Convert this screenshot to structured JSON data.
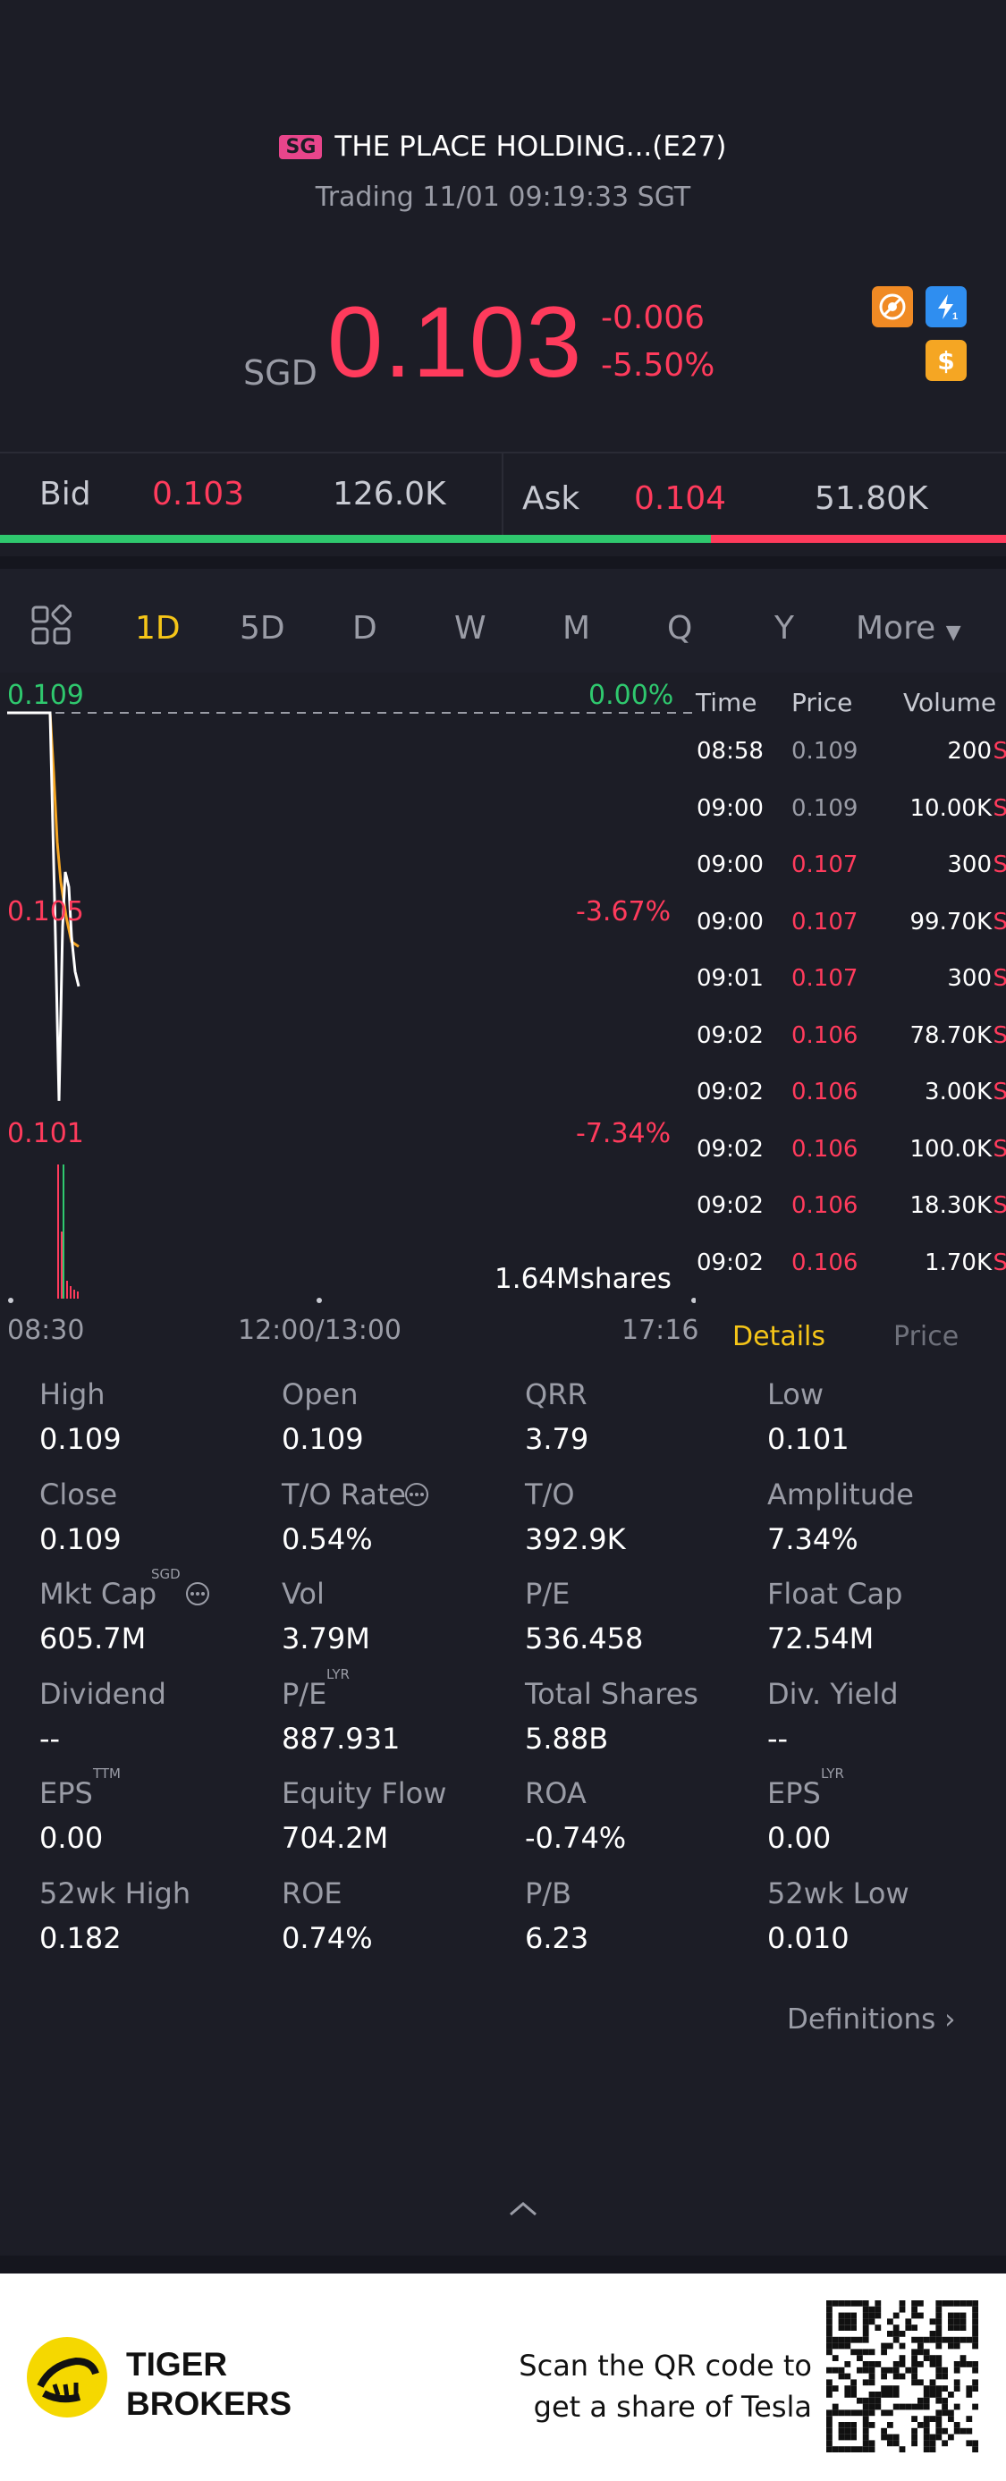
{
  "header": {
    "market_badge": "SG",
    "title": "THE PLACE HOLDING...(E27)",
    "status": "Trading 11/01 09:19:33 SGT",
    "currency": "SGD",
    "price": "0.103",
    "change": "-0.006",
    "change_pct": "-5.50%",
    "icons": [
      "no-trade-icon",
      "lightning-level1-icon",
      "dollar-icon"
    ]
  },
  "bidask": {
    "bid_label": "Bid",
    "bid_price": "0.103",
    "bid_size": "126.0K",
    "ask_label": "Ask",
    "ask_price": "0.104",
    "ask_size": "51.80K",
    "bid_share": 0.707
  },
  "tabs": {
    "items": [
      "1D",
      "5D",
      "D",
      "W",
      "M",
      "Q",
      "Y"
    ],
    "active": "1D",
    "more_label": "More"
  },
  "chart": {
    "price_high": "0.109",
    "pct_high": "0.00%",
    "price_mid": "0.105",
    "pct_mid": "-3.67%",
    "price_low": "0.101",
    "pct_low": "-7.34%",
    "volume_label": "1.64Mshares",
    "time_start": "08:30",
    "time_mid": "12:00/13:00",
    "time_end": "17:16"
  },
  "chart_data": {
    "type": "line",
    "x": [
      "08:30",
      "08:58",
      "09:00",
      "09:01",
      "09:02"
    ],
    "series": [
      {
        "values": [
          0.109,
          0.109,
          0.107,
          0.107,
          0.106
        ]
      }
    ],
    "ylim": [
      0.101,
      0.109
    ]
  },
  "ticks": {
    "headers": [
      "Time",
      "Price",
      "Volume"
    ],
    "rows": [
      {
        "time": "08:58",
        "price": "0.109",
        "volume": "200",
        "side": "S",
        "tone": "flat"
      },
      {
        "time": "09:00",
        "price": "0.109",
        "volume": "10.00K",
        "side": "S",
        "tone": "flat"
      },
      {
        "time": "09:00",
        "price": "0.107",
        "volume": "300",
        "side": "S",
        "tone": "down"
      },
      {
        "time": "09:00",
        "price": "0.107",
        "volume": "99.70K",
        "side": "S",
        "tone": "down"
      },
      {
        "time": "09:01",
        "price": "0.107",
        "volume": "300",
        "side": "S",
        "tone": "down"
      },
      {
        "time": "09:02",
        "price": "0.106",
        "volume": "78.70K",
        "side": "S",
        "tone": "down"
      },
      {
        "time": "09:02",
        "price": "0.106",
        "volume": "3.00K",
        "side": "S",
        "tone": "down"
      },
      {
        "time": "09:02",
        "price": "0.106",
        "volume": "100.0K",
        "side": "S",
        "tone": "down"
      },
      {
        "time": "09:02",
        "price": "0.106",
        "volume": "18.30K",
        "side": "S",
        "tone": "down"
      },
      {
        "time": "09:02",
        "price": "0.106",
        "volume": "1.70K",
        "side": "S",
        "tone": "down"
      }
    ],
    "details_tab": "Details",
    "price_tab": "Price"
  },
  "stats": {
    "rows": [
      [
        {
          "label": "High",
          "value": "0.109"
        },
        {
          "label": "Open",
          "value": "0.109"
        },
        {
          "label": "QRR",
          "value": "3.79"
        },
        {
          "label": "Low",
          "value": "0.101"
        }
      ],
      [
        {
          "label": "Close",
          "value": "0.109"
        },
        {
          "label": "T/O Rate",
          "value": "0.54%"
        },
        {
          "label": "T/O",
          "value": "392.9K"
        },
        {
          "label": "Amplitude",
          "value": "7.34%"
        }
      ],
      [
        {
          "label": "Mkt Cap",
          "value": "605.7M",
          "sup": "SGD"
        },
        {
          "label": "Vol",
          "value": "3.79M"
        },
        {
          "label": "P/E",
          "value": "536.458"
        },
        {
          "label": "Float Cap",
          "value": "72.54M"
        }
      ],
      [
        {
          "label": "Dividend",
          "value": "--"
        },
        {
          "label": "P/E",
          "value": "887.931",
          "sup": "LYR"
        },
        {
          "label": "Total Shares",
          "value": "5.88B"
        },
        {
          "label": "Div. Yield",
          "value": "--"
        }
      ],
      [
        {
          "label": "EPS",
          "value": "0.00",
          "sup": "TTM"
        },
        {
          "label": "Equity Flow",
          "value": "704.2M"
        },
        {
          "label": "ROA",
          "value": "-0.74%"
        },
        {
          "label": "EPS",
          "value": "0.00",
          "sup": "LYR"
        }
      ],
      [
        {
          "label": "52wk High",
          "value": "0.182"
        },
        {
          "label": "ROE",
          "value": "0.74%"
        },
        {
          "label": "P/B",
          "value": "6.23"
        },
        {
          "label": "52wk Low",
          "value": "0.010"
        }
      ]
    ],
    "definitions_label": "Definitions"
  },
  "footer": {
    "brand_line1": "TIGER",
    "brand_line2": "BROKERS",
    "promo_line1": "Scan the QR code to",
    "promo_line2": "get a share of Tesla"
  },
  "colors": {
    "down": "#ff3b5c",
    "up": "#2fc86e",
    "accent": "#f5c518",
    "background": "#1c1d26"
  }
}
